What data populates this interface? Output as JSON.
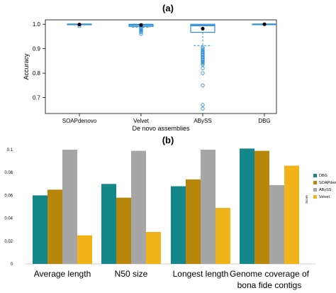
{
  "figure": {
    "panel_a_label": "(a)",
    "panel_b_label": "(b)"
  },
  "chart_data": [
    {
      "type": "box",
      "panel": "(a)",
      "xlabel": "De novo assemblies",
      "ylabel": "Accuracy",
      "categories": [
        "SOAPdenovo",
        "Velvet",
        "ABySS",
        "DBG"
      ],
      "yticks": [
        "0.7",
        "0.8",
        "0.9",
        "1.0"
      ],
      "ylim": [
        0.635,
        1.018
      ],
      "grid": false,
      "colors": {
        "box": "#2d8fd6",
        "mean": "#000000",
        "outlier": "#2d8fd6"
      },
      "boxes": [
        {
          "category": "SOAPdenovo",
          "q1": 0.998,
          "median": 1.0,
          "q3": 1.0,
          "whisker_low": 0.998,
          "whisker_high": 1.0,
          "mean": 0.999,
          "outliers": [
            0.993
          ]
        },
        {
          "category": "Velvet",
          "q1": 0.991,
          "median": 0.997,
          "q3": 1.0,
          "whisker_low": 0.988,
          "whisker_high": 1.0,
          "mean": 0.997,
          "outliers": [
            0.985,
            0.982,
            0.978,
            0.975,
            0.972,
            0.968,
            0.96
          ]
        },
        {
          "category": "ABySS",
          "q1": 0.967,
          "median": 0.995,
          "q3": 1.0,
          "whisker_low": 0.913,
          "whisker_high": 1.0,
          "mean": 0.982,
          "outliers": [
            0.905,
            0.9,
            0.895,
            0.89,
            0.886,
            0.882,
            0.878,
            0.874,
            0.87,
            0.866,
            0.862,
            0.858,
            0.854,
            0.85,
            0.845,
            0.84,
            0.835,
            0.82,
            0.8,
            0.75,
            0.67,
            0.655
          ]
        },
        {
          "category": "DBG",
          "q1": 1.0,
          "median": 1.0,
          "q3": 1.0,
          "whisker_low": 1.0,
          "whisker_high": 1.0,
          "mean": 1.0,
          "outliers": []
        }
      ]
    },
    {
      "type": "bar",
      "panel": "(b)",
      "ylabel": "Score",
      "categories": [
        "Average length",
        "N50 size",
        "Longest length",
        "Genome coverage of\nbona fide contigs"
      ],
      "yticks": [
        "0",
        "0.02",
        "0.04",
        "0.06",
        "0.08",
        "0.1"
      ],
      "ylim": [
        0,
        0.1
      ],
      "legend_position": "right",
      "series": [
        {
          "name": "DBG",
          "color": "#14878a",
          "values": [
            0.06,
            0.07,
            0.068,
            0.101
          ]
        },
        {
          "name": "SOAPdenovo",
          "color": "#b8860b",
          "values": [
            0.065,
            0.058,
            0.074,
            0.099
          ]
        },
        {
          "name": "ABySS",
          "color": "#a6a6a6",
          "values": [
            0.1,
            0.099,
            0.1,
            0.069
          ]
        },
        {
          "name": "Velvet",
          "color": "#f0b31a",
          "values": [
            0.025,
            0.028,
            0.049,
            0.086
          ]
        }
      ]
    }
  ]
}
